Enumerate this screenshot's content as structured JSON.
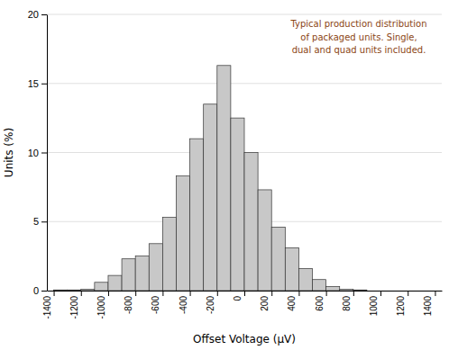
{
  "chart_data": {
    "type": "histogram",
    "bins": [
      -1400,
      -1300,
      -1200,
      -1100,
      -1000,
      -900,
      -800,
      -700,
      -600,
      -500,
      -400,
      -300,
      -200,
      -100,
      0,
      100,
      200,
      300,
      400,
      500,
      600,
      700,
      800,
      900,
      1000,
      1100,
      1200,
      1300,
      1400
    ],
    "values": [
      0.05,
      0.05,
      0.1,
      0.6,
      1.1,
      2.3,
      2.5,
      3.4,
      5.3,
      8.3,
      11.0,
      13.5,
      16.3,
      12.5,
      10.0,
      7.3,
      4.6,
      3.1,
      1.6,
      0.8,
      0.3,
      0.1,
      0.05,
      0.0,
      0.0,
      0.0,
      0.0,
      0.0
    ],
    "color": "#c8c8c8",
    "xlim": [
      -1450,
      1450
    ],
    "ylim": [
      0,
      20
    ],
    "xticks": [
      -1400,
      -1200,
      -1000,
      -800,
      -600,
      -400,
      -200,
      0,
      200,
      400,
      600,
      800,
      1000,
      1200,
      1400
    ],
    "yticks": [
      0,
      5,
      10,
      15,
      20
    ],
    "xlabel": "Offset Voltage (μV)",
    "ylabel": "Units (%)",
    "annotations": [
      {
        "text": "Typical production distribution\nof packaged units. Single,\ndual and quad units included.",
        "color": "#8B4513"
      }
    ],
    "grid": true
  }
}
